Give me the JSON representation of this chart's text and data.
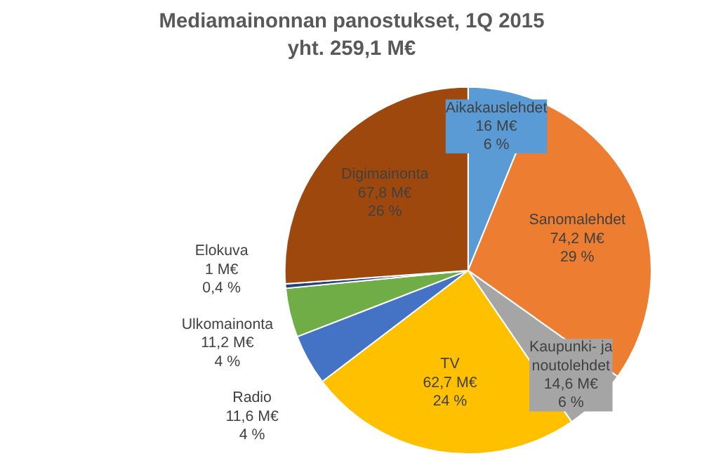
{
  "chart_data": {
    "type": "pie",
    "title": "Mediamainonnan panostukset, 1Q 2015\nyht. 259,1 M€",
    "categories": [
      "Aikakauslehdet",
      "Sanomalehdet",
      "Kaupunki- ja\nnoutolehdet",
      "TV",
      "Radio",
      "Ulkomainonta",
      "Elokuva",
      "Digimainonta"
    ],
    "values": [
      16,
      74.2,
      14.6,
      62.7,
      11.6,
      11.2,
      1,
      67.8
    ],
    "value_labels": [
      "16 M€\n6 %",
      "74,2 M€\n29 %",
      "14,6 M€\n6 %",
      "62,7 M€\n24 %",
      "11,6 M€\n4 %",
      "11,2 M€\n4 %",
      "1 M€\n0,4 %",
      "67,8 M€\n26 %"
    ],
    "colors": [
      "#5b9bd5",
      "#ed7d31",
      "#a5a5a5",
      "#ffc000",
      "#4472c4",
      "#70ad47",
      "#264478",
      "#9e480e"
    ],
    "data_labels": true,
    "legend": false
  }
}
